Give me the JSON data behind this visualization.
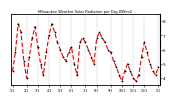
{
  "title": "Milwaukee Weather Solar Radiation per Day KW/m2",
  "background_color": "#ffffff",
  "line_color": "#dd0000",
  "marker_color": "#000000",
  "grid_color": "#888888",
  "y_values": [
    4.5,
    5.8,
    7.8,
    7.2,
    5.2,
    4.0,
    5.5,
    6.8,
    7.6,
    6.2,
    5.0,
    4.2,
    5.8,
    7.0,
    7.8,
    7.2,
    6.5,
    6.0,
    5.5,
    5.2,
    5.8,
    6.2,
    5.0,
    4.2,
    6.5,
    6.8,
    6.5,
    6.0,
    5.5,
    5.0,
    6.8,
    7.2,
    6.8,
    6.5,
    6.0,
    5.8,
    5.2,
    4.8,
    4.2,
    3.8,
    4.5,
    5.0,
    4.5,
    4.0,
    3.8,
    4.2,
    5.5,
    6.5,
    5.8,
    5.0,
    4.5,
    4.2,
    4.8
  ],
  "ylim": [
    3.5,
    8.5
  ],
  "ytick_values": [
    4,
    5,
    6,
    7,
    8
  ],
  "ytick_labels": [
    "4",
    "5",
    "6",
    "7",
    "8"
  ],
  "x_tick_positions": [
    0,
    5,
    9,
    13,
    17,
    21,
    26,
    30,
    35,
    39,
    43,
    47,
    52
  ],
  "x_tick_labels": [
    "1/1",
    "2/1",
    "3/1",
    "4/1",
    "5/1",
    "6/1",
    "7/1",
    "8/1",
    "9/1",
    "10/1",
    "11/1",
    "12/1",
    "1/1"
  ],
  "vgrid_positions": [
    5,
    9,
    13,
    17,
    21,
    26,
    30,
    35,
    39,
    43,
    47,
    52
  ]
}
